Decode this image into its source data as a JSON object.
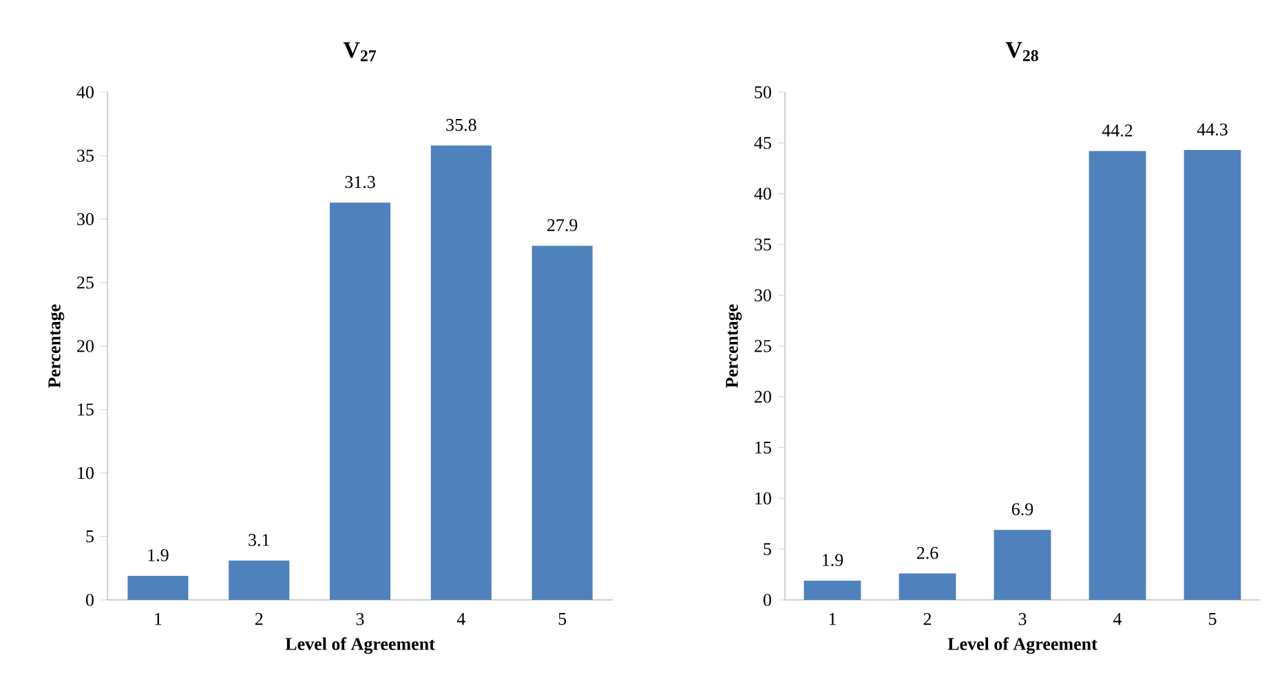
{
  "chart_data": [
    {
      "type": "bar",
      "title": "V$_{27}$",
      "xlabel": "Level of Agreement",
      "ylabel": "Percentage",
      "categories": [
        "1",
        "2",
        "3",
        "4",
        "5"
      ],
      "values": [
        1.9,
        3.1,
        31.3,
        35.8,
        27.9
      ],
      "color": "#4f81bd",
      "ylim": [
        0,
        40
      ],
      "yticks": [
        0,
        5,
        10,
        15,
        20,
        25,
        30,
        35,
        40
      ],
      "data_labels": true
    },
    {
      "type": "bar",
      "title": "V$_{28}$",
      "xlabel": "Level of Agreement",
      "ylabel": "Percentage",
      "categories": [
        "1",
        "2",
        "3",
        "4",
        "5"
      ],
      "values": [
        1.9,
        2.6,
        6.9,
        44.2,
        44.3
      ],
      "color": "#4f81bd",
      "ylim": [
        0,
        50
      ],
      "yticks": [
        0,
        5,
        10,
        15,
        20,
        25,
        30,
        35,
        40,
        45,
        50
      ],
      "data_labels": true
    }
  ]
}
